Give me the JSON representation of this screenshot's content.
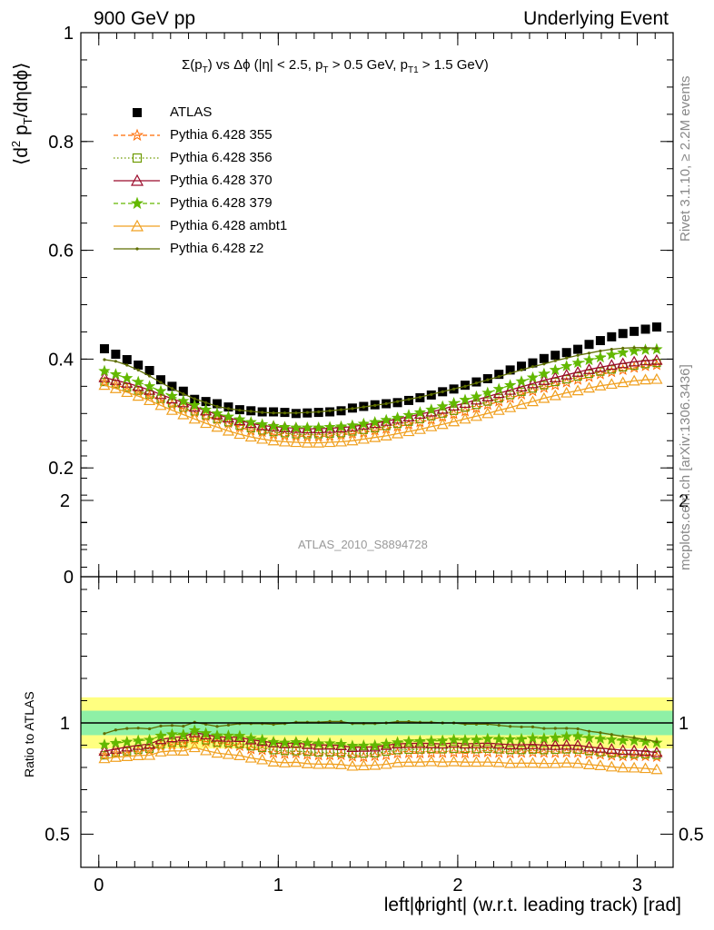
{
  "header": {
    "energy": "900 GeV pp",
    "process": "Underlying Event"
  },
  "plot_title": "Σ(p_T) vs Δϕ (|η| < 2.5, p_T > 0.5 GeV, p_T1 > 1.5 GeV)",
  "side_texts": {
    "rivet": "Rivet 3.1.10, ≥ 2.2M events",
    "mcplots": "mcplots.cern.ch [arXiv:1306.3436]"
  },
  "reference_label": "ATLAS_2010_S8894728",
  "legend": [
    {
      "name": "ATLAS",
      "color": "#000000"
    },
    {
      "name": "Pythia 6.428 355",
      "color": "#ff6a00"
    },
    {
      "name": "Pythia 6.428 356",
      "color": "#6e9a00"
    },
    {
      "name": "Pythia 6.428 370",
      "color": "#9b0a2a"
    },
    {
      "name": "Pythia 6.428 379",
      "color": "#63b800"
    },
    {
      "name": "Pythia 6.428 ambt1",
      "color": "#f0a020"
    },
    {
      "name": "Pythia 6.428 z2",
      "color": "#5e6e00"
    }
  ],
  "chart_data": {
    "type": "scatter",
    "xlabel": "left|ϕright| (w.r.t. leading track) [rad]",
    "ylabel": "⟨d² p_T/dηdϕ⟩",
    "ratio_ylabel": "Ratio to ATLAS",
    "xlim": [
      -0.1,
      3.2
    ],
    "ylim": [
      0,
      1
    ],
    "ratio_ylim": [
      0.5,
      2.2
    ],
    "x_ticks": [
      "0",
      "1",
      "2",
      "3"
    ],
    "y_ticks": [
      "0",
      "0.2",
      "0.4",
      "0.6",
      "0.8",
      "1"
    ],
    "ratio_ticks": [
      "0.5",
      "1",
      "2"
    ],
    "x_start": 0.0314,
    "x_step": 0.0628,
    "series": [
      {
        "name": "ATLAS",
        "marker": "square",
        "color": "#000000",
        "values": [
          0.419,
          0.409,
          0.399,
          0.389,
          0.379,
          0.362,
          0.35,
          0.341,
          0.326,
          0.322,
          0.318,
          0.312,
          0.307,
          0.305,
          0.303,
          0.303,
          0.302,
          0.3,
          0.301,
          0.302,
          0.303,
          0.305,
          0.31,
          0.313,
          0.316,
          0.318,
          0.32,
          0.324,
          0.329,
          0.334,
          0.34,
          0.345,
          0.352,
          0.358,
          0.364,
          0.372,
          0.38,
          0.387,
          0.393,
          0.401,
          0.407,
          0.412,
          0.418,
          0.427,
          0.434,
          0.441,
          0.447,
          0.451,
          0.455,
          0.459
        ]
      },
      {
        "name": "Pythia 6.428 355",
        "marker": "star-open",
        "color": "#ff6a00",
        "values": [
          0.358,
          0.353,
          0.346,
          0.34,
          0.332,
          0.325,
          0.316,
          0.309,
          0.302,
          0.295,
          0.289,
          0.282,
          0.275,
          0.269,
          0.266,
          0.262,
          0.26,
          0.259,
          0.258,
          0.258,
          0.259,
          0.261,
          0.263,
          0.265,
          0.269,
          0.272,
          0.276,
          0.28,
          0.284,
          0.289,
          0.294,
          0.299,
          0.304,
          0.31,
          0.316,
          0.322,
          0.328,
          0.335,
          0.341,
          0.347,
          0.352,
          0.357,
          0.362,
          0.367,
          0.372,
          0.376,
          0.38,
          0.384,
          0.387,
          0.389
        ]
      },
      {
        "name": "Pythia 6.428 356",
        "marker": "square-open",
        "color": "#6e9a00",
        "values": [
          0.358,
          0.354,
          0.348,
          0.342,
          0.335,
          0.327,
          0.319,
          0.311,
          0.304,
          0.297,
          0.29,
          0.284,
          0.278,
          0.273,
          0.269,
          0.266,
          0.264,
          0.262,
          0.262,
          0.262,
          0.263,
          0.264,
          0.267,
          0.27,
          0.273,
          0.277,
          0.281,
          0.285,
          0.29,
          0.295,
          0.3,
          0.305,
          0.311,
          0.316,
          0.322,
          0.328,
          0.334,
          0.34,
          0.346,
          0.352,
          0.358,
          0.363,
          0.368,
          0.373,
          0.377,
          0.381,
          0.385,
          0.388,
          0.391,
          0.393
        ]
      },
      {
        "name": "Pythia 6.428 370",
        "marker": "triangle-open",
        "color": "#9b0a2a",
        "values": [
          0.366,
          0.361,
          0.356,
          0.35,
          0.343,
          0.335,
          0.327,
          0.32,
          0.312,
          0.305,
          0.298,
          0.292,
          0.287,
          0.282,
          0.278,
          0.276,
          0.274,
          0.273,
          0.272,
          0.272,
          0.273,
          0.274,
          0.276,
          0.279,
          0.282,
          0.286,
          0.29,
          0.294,
          0.299,
          0.303,
          0.308,
          0.314,
          0.319,
          0.325,
          0.331,
          0.337,
          0.343,
          0.349,
          0.355,
          0.361,
          0.366,
          0.371,
          0.376,
          0.381,
          0.385,
          0.389,
          0.392,
          0.395,
          0.397,
          0.398
        ]
      },
      {
        "name": "Pythia 6.428 379",
        "marker": "star",
        "color": "#63b800",
        "values": [
          0.378,
          0.372,
          0.365,
          0.358,
          0.35,
          0.341,
          0.332,
          0.323,
          0.315,
          0.307,
          0.3,
          0.294,
          0.289,
          0.284,
          0.28,
          0.277,
          0.275,
          0.274,
          0.274,
          0.274,
          0.275,
          0.276,
          0.278,
          0.281,
          0.284,
          0.288,
          0.292,
          0.297,
          0.302,
          0.307,
          0.313,
          0.319,
          0.325,
          0.331,
          0.338,
          0.345,
          0.352,
          0.359,
          0.366,
          0.373,
          0.38,
          0.387,
          0.393,
          0.398,
          0.403,
          0.408,
          0.412,
          0.415,
          0.417,
          0.418
        ]
      },
      {
        "name": "Pythia 6.428 ambt1",
        "marker": "triangle-open",
        "color": "#f0a020",
        "values": [
          0.352,
          0.346,
          0.339,
          0.332,
          0.324,
          0.315,
          0.306,
          0.298,
          0.29,
          0.282,
          0.275,
          0.268,
          0.262,
          0.257,
          0.253,
          0.25,
          0.248,
          0.247,
          0.246,
          0.246,
          0.247,
          0.248,
          0.25,
          0.253,
          0.256,
          0.259,
          0.263,
          0.267,
          0.271,
          0.276,
          0.28,
          0.285,
          0.29,
          0.295,
          0.3,
          0.306,
          0.311,
          0.317,
          0.322,
          0.328,
          0.333,
          0.338,
          0.342,
          0.347,
          0.351,
          0.354,
          0.357,
          0.36,
          0.362,
          0.363
        ]
      },
      {
        "name": "Pythia 6.428 z2",
        "marker": "dot",
        "color": "#5e6e00",
        "values": [
          0.399,
          0.396,
          0.389,
          0.38,
          0.369,
          0.357,
          0.346,
          0.336,
          0.327,
          0.32,
          0.313,
          0.309,
          0.306,
          0.304,
          0.302,
          0.301,
          0.301,
          0.301,
          0.302,
          0.303,
          0.305,
          0.307,
          0.309,
          0.312,
          0.315,
          0.318,
          0.322,
          0.326,
          0.33,
          0.335,
          0.34,
          0.345,
          0.35,
          0.356,
          0.362,
          0.368,
          0.374,
          0.38,
          0.386,
          0.391,
          0.397,
          0.402,
          0.407,
          0.411,
          0.415,
          0.418,
          0.42,
          0.421,
          0.421,
          0.42
        ]
      }
    ]
  }
}
